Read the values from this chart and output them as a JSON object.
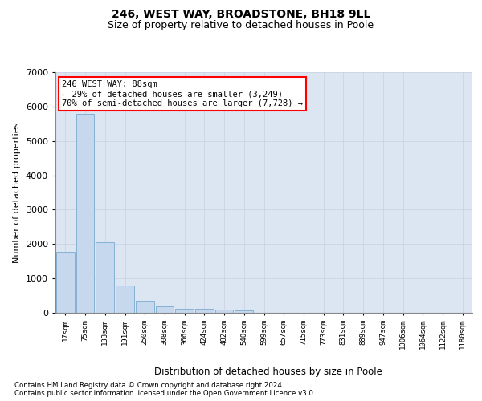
{
  "title1": "246, WEST WAY, BROADSTONE, BH18 9LL",
  "title2": "Size of property relative to detached houses in Poole",
  "xlabel": "Distribution of detached houses by size in Poole",
  "ylabel": "Number of detached properties",
  "footnote1": "Contains HM Land Registry data © Crown copyright and database right 2024.",
  "footnote2": "Contains public sector information licensed under the Open Government Licence v3.0.",
  "annotation_line1": "246 WEST WAY: 88sqm",
  "annotation_line2": "← 29% of detached houses are smaller (3,249)",
  "annotation_line3": "70% of semi-detached houses are larger (7,728) →",
  "bar_labels": [
    "17sqm",
    "75sqm",
    "133sqm",
    "191sqm",
    "250sqm",
    "308sqm",
    "366sqm",
    "424sqm",
    "482sqm",
    "540sqm",
    "599sqm",
    "657sqm",
    "715sqm",
    "773sqm",
    "831sqm",
    "889sqm",
    "947sqm",
    "1006sqm",
    "1064sqm",
    "1122sqm",
    "1180sqm"
  ],
  "bar_values": [
    1780,
    5780,
    2060,
    800,
    340,
    185,
    120,
    110,
    100,
    70,
    0,
    0,
    0,
    0,
    0,
    0,
    0,
    0,
    0,
    0,
    0
  ],
  "bar_color": "#c5d8ee",
  "bar_edge_color": "#7aaacf",
  "annotation_box_bg": "white",
  "annotation_box_edge": "red",
  "ylim_max": 7000,
  "ytick_step": 1000,
  "grid_color": "#c8cfe0",
  "bg_color": "#dce5f2",
  "title1_fontsize": 10,
  "title2_fontsize": 9,
  "ylabel_fontsize": 8,
  "xlabel_fontsize": 8.5,
  "tick_fontsize": 8,
  "xtick_fontsize": 6.5,
  "ann_fontsize": 7.5,
  "footnote_fontsize": 6.2
}
